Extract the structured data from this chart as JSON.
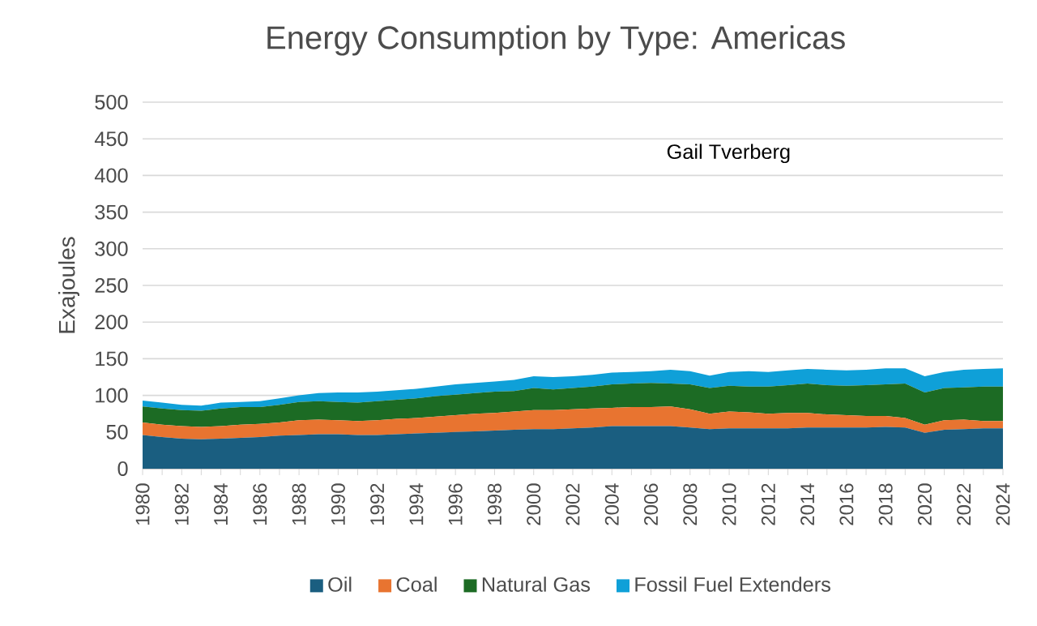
{
  "chart_data": {
    "type": "area",
    "stacked": true,
    "title": "Energy Consumption by Type: Americas",
    "ylabel": "Exajoules",
    "categories": [
      "1980",
      null,
      "1982",
      null,
      "1984",
      null,
      "1986",
      null,
      "1988",
      null,
      "1990",
      null,
      "1992",
      null,
      "1994",
      null,
      "1996",
      null,
      "1998",
      null,
      "2000",
      null,
      "2002",
      null,
      "2004",
      null,
      "2006",
      null,
      "2008",
      null,
      "2010",
      null,
      "2012",
      null,
      "2014",
      null,
      "2016",
      null,
      "2018",
      null,
      "2020",
      null,
      "2022",
      null,
      "2024"
    ],
    "series": [
      {
        "name": "Oil",
        "color": "#1a5e80",
        "values": [
          46,
          43,
          41,
          40,
          41,
          42,
          43,
          45,
          46,
          47,
          47,
          46,
          46,
          47,
          48,
          49,
          50,
          51,
          52,
          53,
          54,
          54,
          55,
          56,
          58,
          58,
          58,
          58,
          56,
          54,
          55,
          55,
          55,
          55,
          56,
          56,
          56,
          56,
          57,
          56,
          49,
          53,
          54,
          55,
          55
        ]
      },
      {
        "name": "Coal",
        "color": "#e87430",
        "values": [
          17,
          17,
          17,
          17,
          17,
          18,
          18,
          18,
          20,
          20,
          19,
          19,
          20,
          21,
          21,
          22,
          23,
          24,
          24,
          25,
          26,
          26,
          26,
          26,
          25,
          26,
          26,
          27,
          25,
          21,
          23,
          22,
          20,
          21,
          20,
          18,
          17,
          16,
          15,
          13,
          11,
          13,
          13,
          10,
          10
        ]
      },
      {
        "name": "Natural Gas",
        "color": "#1c6b24",
        "values": [
          22,
          22,
          22,
          22,
          24,
          24,
          23,
          24,
          25,
          25,
          25,
          25,
          26,
          26,
          27,
          28,
          28,
          28,
          29,
          28,
          30,
          28,
          29,
          30,
          32,
          32,
          33,
          31,
          34,
          35,
          35,
          35,
          37,
          38,
          40,
          40,
          40,
          42,
          43,
          47,
          44,
          44,
          44,
          47,
          47
        ]
      },
      {
        "name": "Fossil Fuel Extenders",
        "color": "#0fa0d8",
        "values": [
          8,
          8,
          7,
          7,
          8,
          7,
          8,
          9,
          9,
          11,
          13,
          14,
          13,
          13,
          13,
          13,
          14,
          14,
          14,
          15,
          16,
          17,
          16,
          16,
          16,
          16,
          16,
          19,
          18,
          17,
          19,
          21,
          20,
          20,
          20,
          21,
          21,
          21,
          22,
          21,
          22,
          22,
          24,
          24,
          25
        ]
      }
    ],
    "ylim": [
      0,
      500
    ],
    "yticks": [
      0,
      50,
      100,
      150,
      200,
      250,
      300,
      350,
      400,
      450,
      500
    ],
    "grid": "y",
    "legend": "bottom",
    "annotations": [
      "Gail Tverberg"
    ]
  }
}
